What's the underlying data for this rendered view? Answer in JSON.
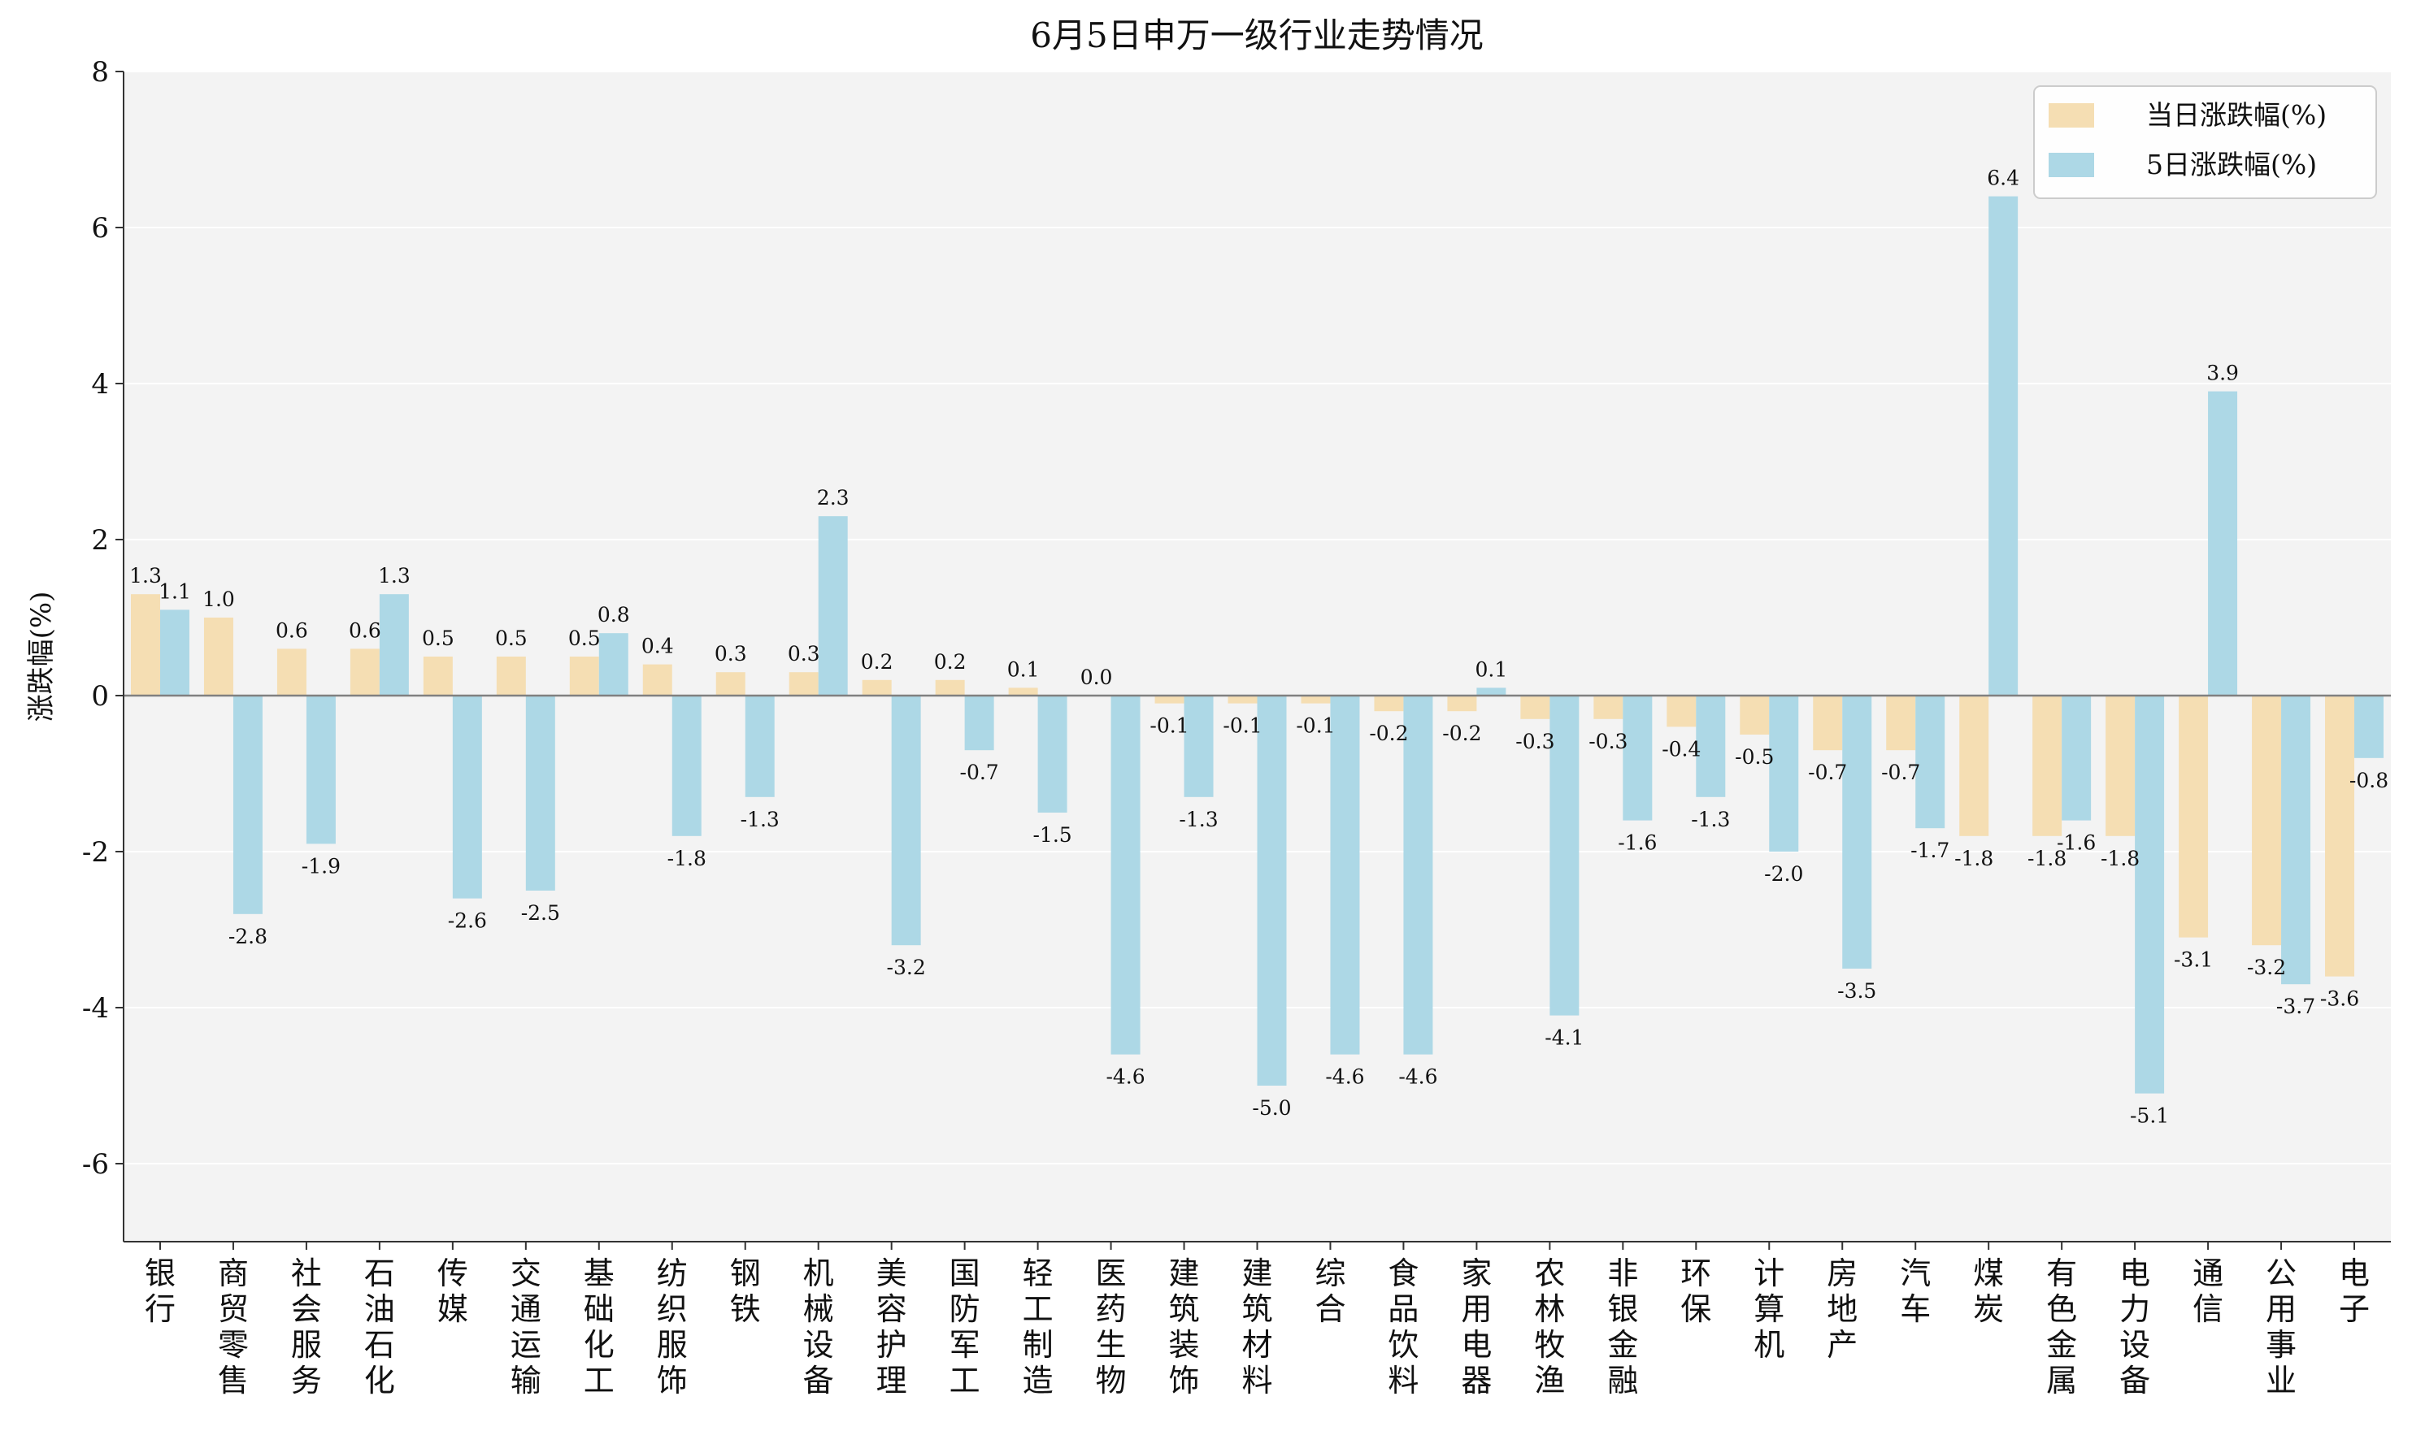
{
  "chart_data": {
    "type": "bar",
    "title": "6月5日申万一级行业走势情况",
    "xlabel": "",
    "ylabel": "涨跌幅(%)",
    "ylim": [
      -7,
      8
    ],
    "yticks": [
      -6,
      -4,
      -2,
      0,
      2,
      4,
      6,
      8
    ],
    "grid": true,
    "legend_position": "top-right",
    "categories": [
      "银行",
      "商贸零售",
      "社会服务",
      "石油石化",
      "传媒",
      "交通运输",
      "基础化工",
      "纺织服饰",
      "钢铁",
      "机械设备",
      "美容护理",
      "国防军工",
      "轻工制造",
      "医药生物",
      "建筑装饰",
      "建筑材料",
      "综合",
      "食品饮料",
      "家用电器",
      "农林牧渔",
      "非银金融",
      "环保",
      "计算机",
      "房地产",
      "汽车",
      "煤炭",
      "有色金属",
      "电力设备",
      "通信",
      "公用事业",
      "电子"
    ],
    "series": [
      {
        "name": "当日涨跌幅(%)",
        "color": "#f5deb3",
        "values": [
          1.3,
          1.0,
          0.6,
          0.6,
          0.5,
          0.5,
          0.5,
          0.4,
          0.3,
          0.3,
          0.2,
          0.2,
          0.1,
          0.0,
          -0.1,
          -0.1,
          -0.1,
          -0.2,
          -0.2,
          -0.3,
          -0.3,
          -0.4,
          -0.5,
          -0.7,
          -0.7,
          -1.8,
          -1.8,
          -1.8,
          -3.1,
          -3.2,
          -3.6
        ]
      },
      {
        "name": "5日涨跌幅(%)",
        "color": "#add8e6",
        "values": [
          1.1,
          -2.8,
          -1.9,
          1.3,
          -2.6,
          -2.5,
          0.8,
          -1.8,
          -1.3,
          2.3,
          -3.2,
          -0.7,
          -1.5,
          -4.6,
          -1.3,
          -5.0,
          -4.6,
          -4.6,
          0.1,
          -4.1,
          -1.6,
          -1.3,
          -2.0,
          -3.5,
          -1.7,
          6.4,
          -1.6,
          -5.1,
          3.9,
          -3.7,
          -0.8
        ]
      }
    ]
  }
}
